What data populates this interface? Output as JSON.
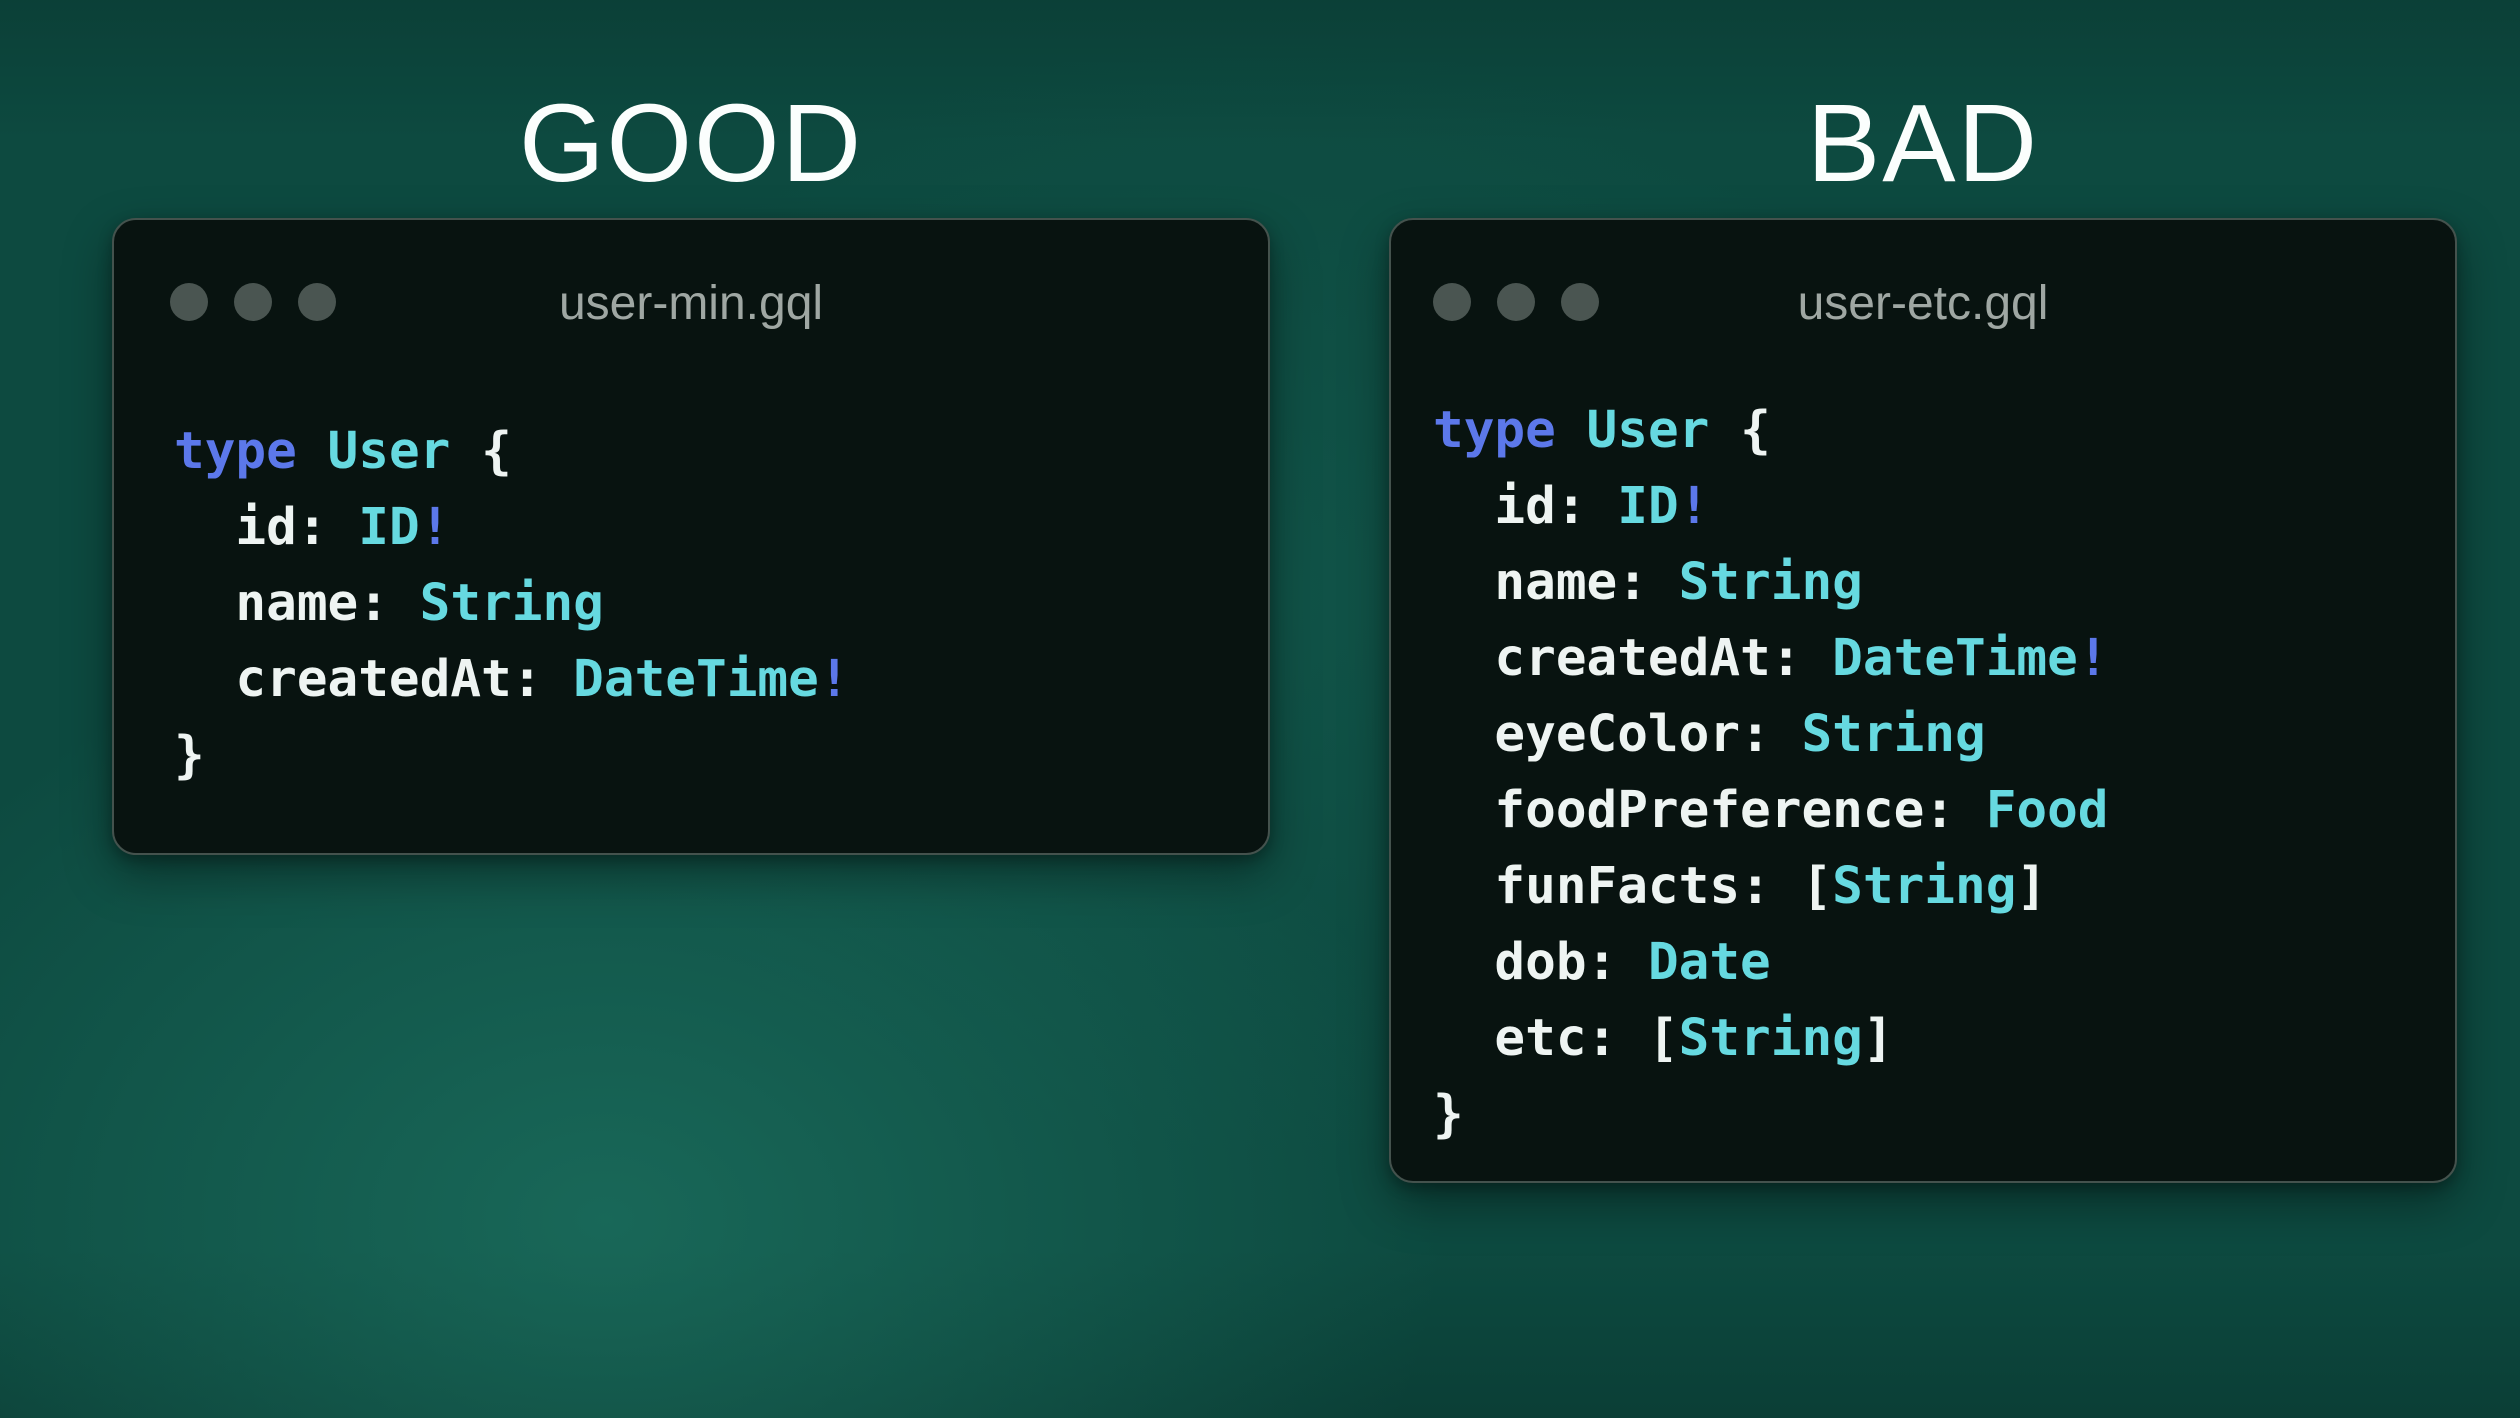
{
  "headings": [
    {
      "label": "GOOD"
    },
    {
      "label": "BAD"
    }
  ],
  "windows": [
    {
      "title": "user-min.gql",
      "dots": 3,
      "code": [
        [
          {
            "t": "type",
            "c": "keyword"
          },
          {
            "t": " ",
            "c": "plain"
          },
          {
            "t": "User",
            "c": "type"
          },
          {
            "t": " {",
            "c": "plain"
          }
        ],
        [
          {
            "t": "  id: ",
            "c": "plain"
          },
          {
            "t": "ID",
            "c": "type"
          },
          {
            "t": "!",
            "c": "keyword"
          }
        ],
        [
          {
            "t": "  name: ",
            "c": "plain"
          },
          {
            "t": "String",
            "c": "type"
          }
        ],
        [
          {
            "t": "  createdAt: ",
            "c": "plain"
          },
          {
            "t": "DateTime",
            "c": "type"
          },
          {
            "t": "!",
            "c": "keyword"
          }
        ],
        [
          {
            "t": "}",
            "c": "plain"
          }
        ]
      ]
    },
    {
      "title": "user-etc.gql",
      "dots": 3,
      "code": [
        [
          {
            "t": "type",
            "c": "keyword"
          },
          {
            "t": " ",
            "c": "plain"
          },
          {
            "t": "User",
            "c": "type"
          },
          {
            "t": " {",
            "c": "plain"
          }
        ],
        [
          {
            "t": "  id: ",
            "c": "plain"
          },
          {
            "t": "ID",
            "c": "type"
          },
          {
            "t": "!",
            "c": "keyword"
          }
        ],
        [
          {
            "t": "  name: ",
            "c": "plain"
          },
          {
            "t": "String",
            "c": "type"
          }
        ],
        [
          {
            "t": "  createdAt: ",
            "c": "plain"
          },
          {
            "t": "DateTime",
            "c": "type"
          },
          {
            "t": "!",
            "c": "keyword"
          }
        ],
        [
          {
            "t": "  eyeColor: ",
            "c": "plain"
          },
          {
            "t": "String",
            "c": "type"
          }
        ],
        [
          {
            "t": "  foodPreference: ",
            "c": "plain"
          },
          {
            "t": "Food",
            "c": "type"
          }
        ],
        [
          {
            "t": "  funFacts: [",
            "c": "plain"
          },
          {
            "t": "String",
            "c": "type"
          },
          {
            "t": "]",
            "c": "plain"
          }
        ],
        [
          {
            "t": "  dob: ",
            "c": "plain"
          },
          {
            "t": "Date",
            "c": "type"
          }
        ],
        [
          {
            "t": "  etc: [",
            "c": "plain"
          },
          {
            "t": "String",
            "c": "type"
          },
          {
            "t": "]",
            "c": "plain"
          }
        ],
        [
          {
            "t": "}",
            "c": "plain"
          }
        ]
      ]
    }
  ],
  "colors": {
    "page_background": "#0d4a40",
    "heading_text": "#fbfefd",
    "window_background": "#081310",
    "window_border": "#44524d",
    "window_dot": "#4a5551",
    "window_title_text": "#9fa7a3",
    "code_plain": "#eef4f2",
    "code_keyword": "#5c78ea",
    "code_type": "#66d9e0"
  }
}
